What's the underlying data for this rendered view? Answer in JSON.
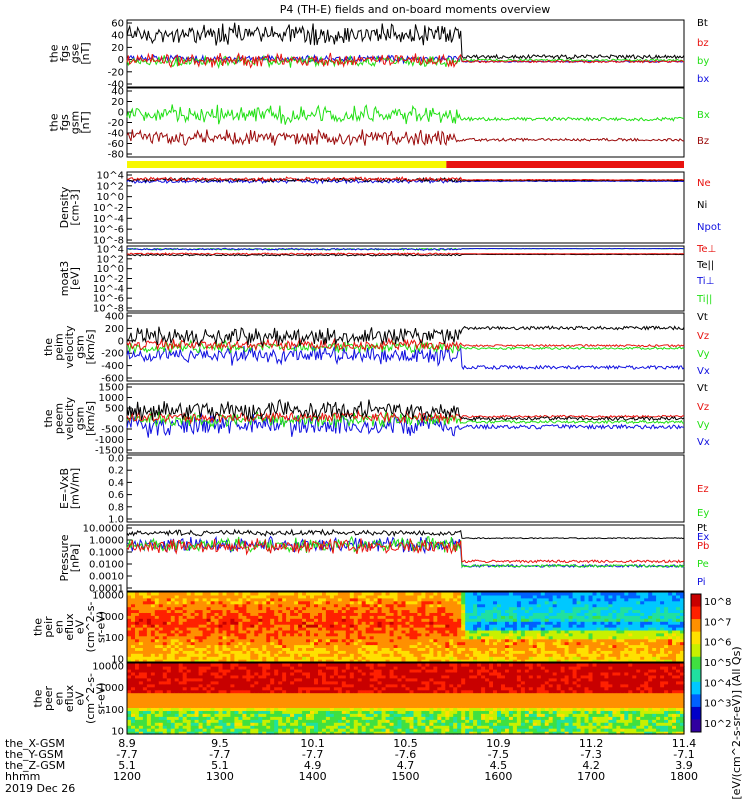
{
  "title": "P4 (TH-E) fields and on-board moments overview",
  "colors": {
    "black": "#000000",
    "red": "#e8120f",
    "green": "#22e015",
    "blue": "#1010e0",
    "darkred": "#9b0a0a",
    "yellow": "#f7f700"
  },
  "chart_data": [
    {
      "type": "line",
      "name": "fgs-gse",
      "ylabel": [
        "the",
        "fgs",
        "gse",
        "[nT]"
      ],
      "ylim": [
        -40,
        60
      ],
      "ticks": [
        -40,
        -20,
        0,
        20,
        40,
        60
      ],
      "series": [
        {
          "name": "Bt",
          "color": "#000000"
        },
        {
          "name": "bz",
          "color": "#e8120f"
        },
        {
          "name": "by",
          "color": "#22e015"
        },
        {
          "name": "bx",
          "color": "#1010e0"
        }
      ]
    },
    {
      "type": "line",
      "name": "fgs-gsm",
      "ylabel": [
        "the",
        "fgs",
        "gsm",
        "[nT]"
      ],
      "ylim": [
        -80,
        40
      ],
      "ticks": [
        -80,
        -60,
        -40,
        -20,
        0,
        20,
        40
      ],
      "series": [
        {
          "name": "Bx",
          "color": "#22e015"
        },
        {
          "name": "Bz",
          "color": "#9b0a0a"
        }
      ]
    },
    {
      "type": "bar",
      "name": "mode-bar",
      "segments": [
        {
          "from": 1200,
          "to": 1544,
          "color": "#f7f700"
        },
        {
          "from": 1544,
          "to": 1800,
          "color": "#e8120f"
        }
      ]
    },
    {
      "type": "line",
      "name": "density",
      "ylabel": [
        "Density",
        "[cm-3]"
      ],
      "log": true,
      "ticks": [
        "10^4",
        "10^2",
        "10^0",
        "10^-2",
        "10^-4",
        "10^-6",
        "10^-8"
      ],
      "series": [
        {
          "name": "Ne",
          "color": "#e8120f"
        },
        {
          "name": "Ni",
          "color": "#000000"
        },
        {
          "name": "Npot",
          "color": "#1010e0"
        }
      ]
    },
    {
      "type": "line",
      "name": "moat3",
      "ylabel": [
        "moat3",
        "[eV]"
      ],
      "log": true,
      "ticks": [
        "10^4",
        "10^2",
        "10^0",
        "10^-2",
        "10^-4",
        "10^-6",
        "10^-8"
      ],
      "series": [
        {
          "name": "Te⊥",
          "color": "#e8120f"
        },
        {
          "name": "Te||",
          "color": "#000000"
        },
        {
          "name": "Ti⊥",
          "color": "#1010e0"
        },
        {
          "name": "Ti||",
          "color": "#22e015"
        }
      ]
    },
    {
      "type": "line",
      "name": "peim-velocity",
      "ylabel": [
        "the",
        "peim",
        "velocity",
        "gsm",
        "[km/s]"
      ],
      "ylim": [
        -600,
        600
      ],
      "ticks": [
        -600,
        -400,
        -200,
        0,
        200,
        400
      ],
      "series": [
        {
          "name": "Vt",
          "color": "#000000"
        },
        {
          "name": "Vz",
          "color": "#e8120f"
        },
        {
          "name": "Vy",
          "color": "#22e015"
        },
        {
          "name": "Vx",
          "color": "#1010e0"
        }
      ]
    },
    {
      "type": "line",
      "name": "peem-velocity",
      "ylabel": [
        "the",
        "peem",
        "velocity",
        "gsm",
        "[km/s]"
      ],
      "ylim": [
        -1500,
        1500
      ],
      "ticks": [
        -1500,
        -1000,
        -500,
        0,
        500,
        1000,
        1500
      ],
      "series": [
        {
          "name": "Vt",
          "color": "#000000"
        },
        {
          "name": "Vz",
          "color": "#e8120f"
        },
        {
          "name": "Vy",
          "color": "#22e015"
        },
        {
          "name": "Vx",
          "color": "#1010e0"
        }
      ]
    },
    {
      "type": "line",
      "name": "efield",
      "ylabel": [
        "E=-VxB",
        "[mV/m]"
      ],
      "ylim": [
        0,
        1
      ],
      "ticks": [
        "0.0",
        "0.2",
        "0.4",
        "0.6",
        "0.8",
        "1.0"
      ],
      "series": [
        {
          "name": "Ez",
          "color": "#e8120f"
        },
        {
          "name": "Ey",
          "color": "#22e015"
        },
        {
          "name": "Ex",
          "color": "#1010e0"
        }
      ]
    },
    {
      "type": "line",
      "name": "pressure",
      "ylabel": [
        "Pressure",
        "[nPa]"
      ],
      "log": true,
      "ticks": [
        "10.0000",
        "1.0000",
        "0.1000",
        "0.0100",
        "0.0010",
        "0.0001"
      ],
      "series": [
        {
          "name": "Pt",
          "color": "#000000"
        },
        {
          "name": "Pb",
          "color": "#e8120f"
        },
        {
          "name": "Pe",
          "color": "#22e015"
        },
        {
          "name": "Pi",
          "color": "#1010e0"
        }
      ]
    },
    {
      "type": "heatmap",
      "name": "peir-spectrogram",
      "ylabel": [
        "the",
        "peir",
        "en",
        "eflux",
        "eV",
        "(cm^2-s-",
        "sr-eV)"
      ],
      "ticks": [
        "10000",
        "1000",
        "100",
        "10"
      ]
    },
    {
      "type": "heatmap",
      "name": "peer-spectrogram",
      "ylabel": [
        "the",
        "peer",
        "en",
        "eflux",
        "eV",
        "(cm^2-s-",
        "sr-eV)"
      ],
      "ticks": [
        "10000",
        "1000",
        "100",
        "10"
      ]
    }
  ],
  "colorbar": {
    "label": "[eV/(cm^2-s-sr-eV)] (All Qs)",
    "ticks": [
      "10^8",
      "10^7",
      "10^6",
      "10^5",
      "10^4",
      "10^3",
      "10^2"
    ]
  },
  "xaxis": {
    "rows": [
      {
        "label": "the_X-GSM",
        "values": [
          "8.9",
          "9.5",
          "10.1",
          "10.5",
          "10.9",
          "11.2",
          "11.4"
        ]
      },
      {
        "label": "the_Y-GSM",
        "values": [
          "-7.7",
          "-7.7",
          "-7.7",
          "-7.6",
          "-7.5",
          "-7.3",
          "-7.1"
        ]
      },
      {
        "label": "the_Z-GSM",
        "values": [
          "5.1",
          "5.1",
          "4.9",
          "4.7",
          "4.5",
          "4.2",
          "3.9"
        ]
      },
      {
        "label": "hhmm",
        "values": [
          "1200",
          "1300",
          "1400",
          "1500",
          "1600",
          "1700",
          "1800"
        ]
      }
    ],
    "date": "2019 Dec 26"
  }
}
